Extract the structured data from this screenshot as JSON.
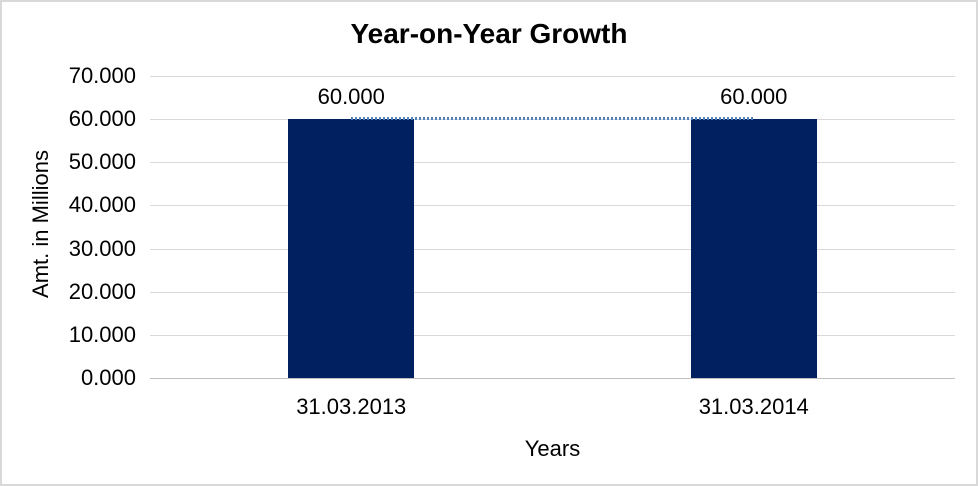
{
  "chart_data": {
    "type": "bar",
    "title": "Year-on-Year Growth",
    "xlabel": "Years",
    "ylabel": "Amt. in Millions",
    "categories": [
      "31.03.2013",
      "31.03.2014"
    ],
    "series": [
      {
        "type": "bar",
        "values": [
          60,
          60
        ],
        "value_labels": [
          "60.000",
          "60.000"
        ],
        "color": "#002060"
      },
      {
        "type": "line",
        "style": "dotted",
        "values": [
          60,
          60
        ],
        "color": "#4f81bd"
      }
    ],
    "ylim": [
      0,
      70
    ],
    "ytick_step": 10,
    "yticks": [
      {
        "value": 0,
        "label": "0.000"
      },
      {
        "value": 10,
        "label": "10.000"
      },
      {
        "value": 20,
        "label": "20.000"
      },
      {
        "value": 30,
        "label": "30.000"
      },
      {
        "value": 40,
        "label": "40.000"
      },
      {
        "value": 50,
        "label": "50.000"
      },
      {
        "value": 60,
        "label": "60.000"
      },
      {
        "value": 70,
        "label": "70.000"
      }
    ],
    "grid": true,
    "legend": "none",
    "colors": {
      "bar": "#002060",
      "trend_line": "#4f81bd",
      "gridline": "#d9d9d9",
      "axis_line": "#c0c0c0",
      "text": "#000000",
      "background": "#ffffff",
      "border": "#d9d9d9"
    }
  }
}
